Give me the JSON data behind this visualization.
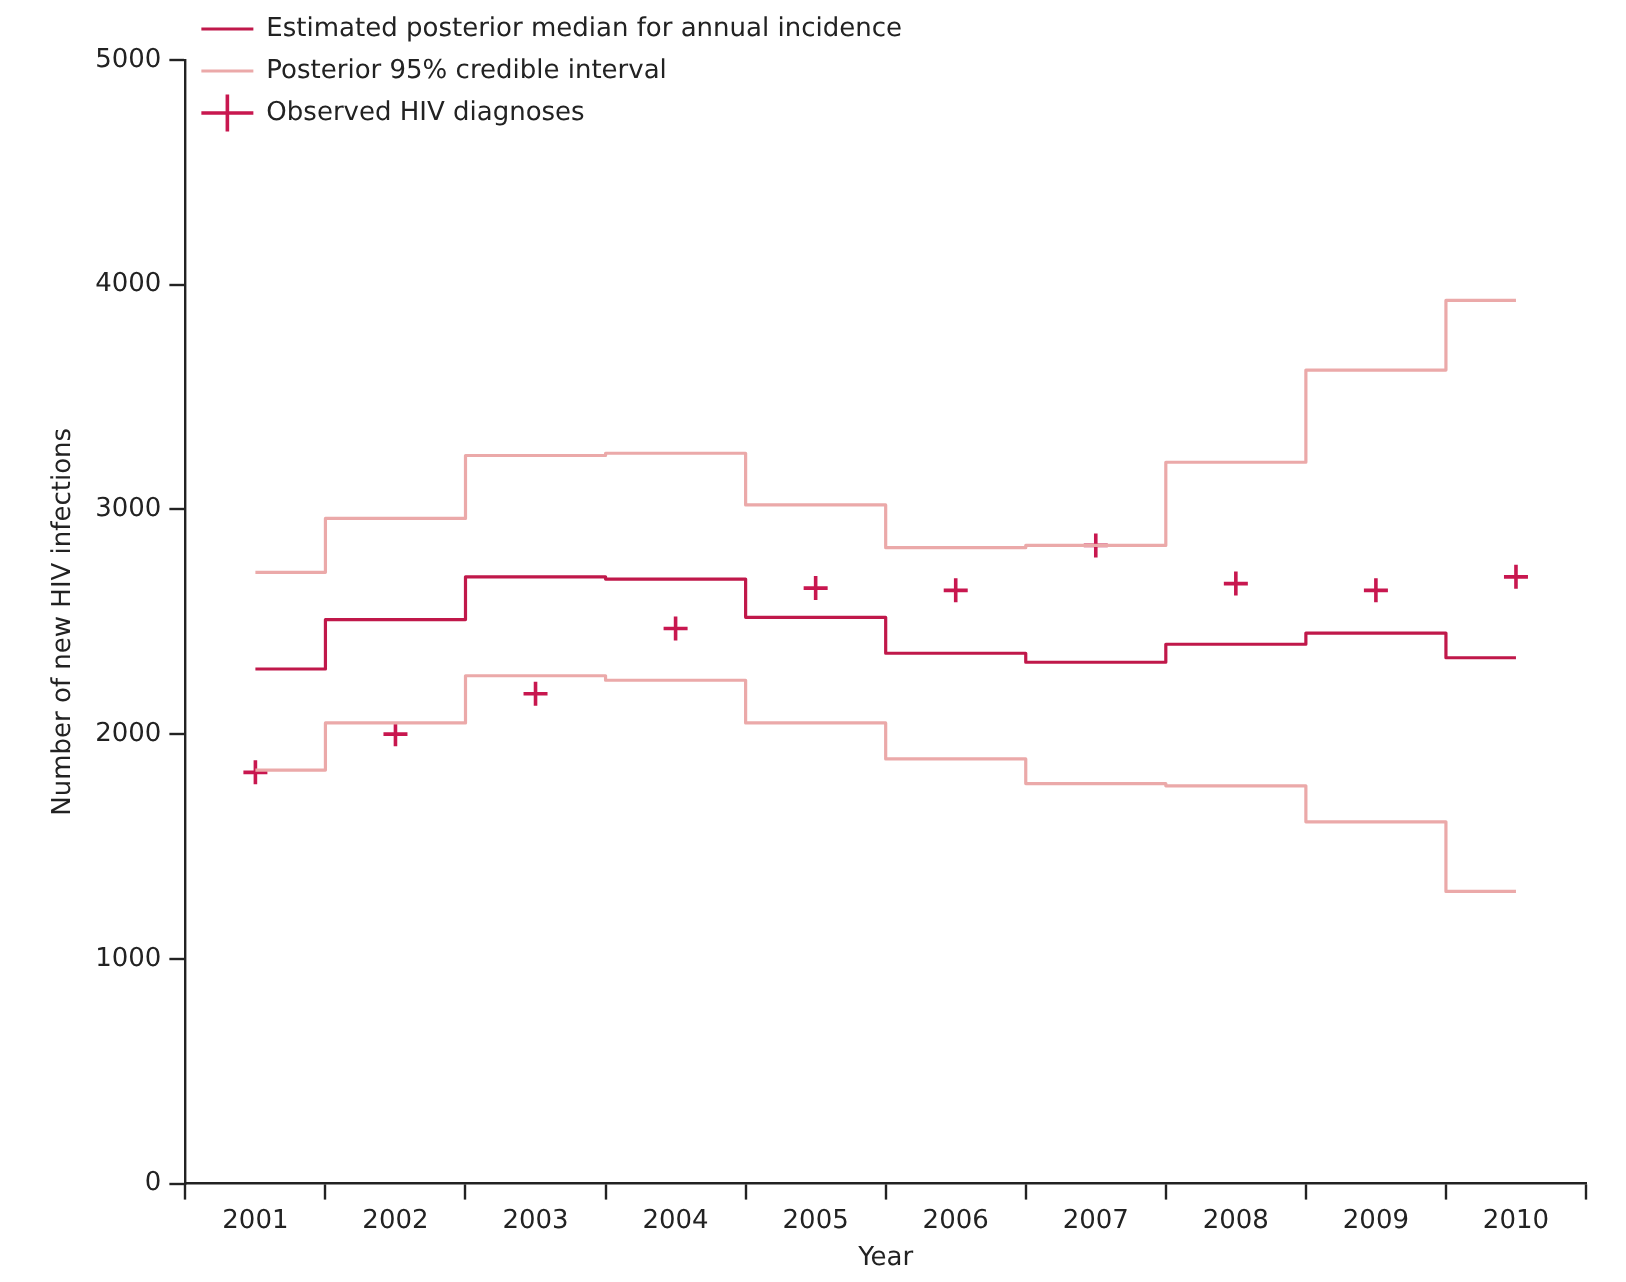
{
  "chart_data": {
    "type": "step",
    "xlabel": "Year",
    "ylabel": "Number of new HIV infections",
    "categories": [
      "2001",
      "2002",
      "2003",
      "2004",
      "2005",
      "2006",
      "2007",
      "2008",
      "2009",
      "2010"
    ],
    "series": [
      {
        "name": "Estimated posterior median for annual incidence",
        "color": "#c0184a",
        "values": [
          2290,
          2510,
          2700,
          2690,
          2520,
          2360,
          2320,
          2400,
          2450,
          2340
        ]
      },
      {
        "name": "Posterior 95% credible interval",
        "color": "#eba9a9",
        "values": [
          2720,
          2960,
          3240,
          3250,
          3020,
          2830,
          2840,
          3210,
          3620,
          3930
        ]
      },
      {
        "color": "#eba9a9",
        "values": [
          1840,
          2050,
          2260,
          2240,
          2050,
          1890,
          1780,
          1770,
          1610,
          1300
        ]
      },
      {
        "type": "scatter",
        "name": "Observed HIV diagnoses",
        "color": "#c8174f",
        "marker": "cross",
        "values": [
          1830,
          2000,
          2180,
          2470,
          2650,
          2640,
          2840,
          2670,
          2640,
          2700
        ]
      }
    ],
    "ylim": [
      0,
      5000
    ],
    "yticks": [
      0,
      1000,
      2000,
      3000,
      4000,
      5000
    ],
    "grid": false,
    "legend": "top left"
  }
}
